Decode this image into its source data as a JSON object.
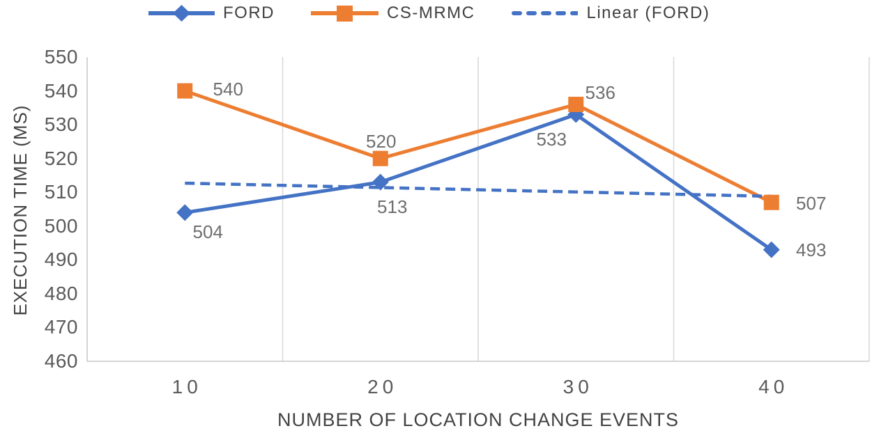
{
  "legend": {
    "items": [
      {
        "label": "FORD",
        "color": "#4472C4",
        "marker": "diamond",
        "line": "solid"
      },
      {
        "label": "CS-MRMC",
        "color": "#ED7D31",
        "marker": "square",
        "line": "solid"
      },
      {
        "label": "Linear (FORD)",
        "color": "#4472C4",
        "marker": "none",
        "line": "dashed"
      }
    ]
  },
  "chart_data": {
    "type": "line",
    "title": "",
    "xlabel": "NUMBER OF LOCATION CHANGE EVENTS",
    "ylabel": "EXECUTION TIME (MS)",
    "categories": [
      10,
      20,
      30,
      40
    ],
    "series": [
      {
        "name": "FORD",
        "values": [
          504,
          513,
          533,
          493
        ],
        "color": "#4472C4",
        "marker": "diamond",
        "style": "solid",
        "data_labels": [
          504,
          513,
          533,
          493
        ]
      },
      {
        "name": "CS-MRMC",
        "values": [
          540,
          520,
          536,
          507
        ],
        "color": "#ED7D31",
        "marker": "square",
        "style": "solid",
        "data_labels": [
          540,
          520,
          536,
          507
        ]
      },
      {
        "name": "Linear (FORD)",
        "values": [
          512.7,
          511.4,
          510.1,
          508.8
        ],
        "color": "#4472C4",
        "marker": "none",
        "style": "dashed",
        "is_trendline": true
      }
    ],
    "ylim": [
      460,
      550
    ],
    "yticks": [
      550,
      540,
      530,
      520,
      510,
      500,
      490,
      480,
      470,
      460
    ],
    "grid": "vertical",
    "legend_position": "top"
  },
  "colors": {
    "ford_blue": "#4472C4",
    "csmrmc_orange": "#ED7D31",
    "gridline": "#D9D9D9",
    "axis_line": "#C9C9C9",
    "tick_text": "#595959",
    "data_label_text": "#6E6E6E",
    "legend_text": "#404040",
    "axis_title_text": "#424242"
  }
}
